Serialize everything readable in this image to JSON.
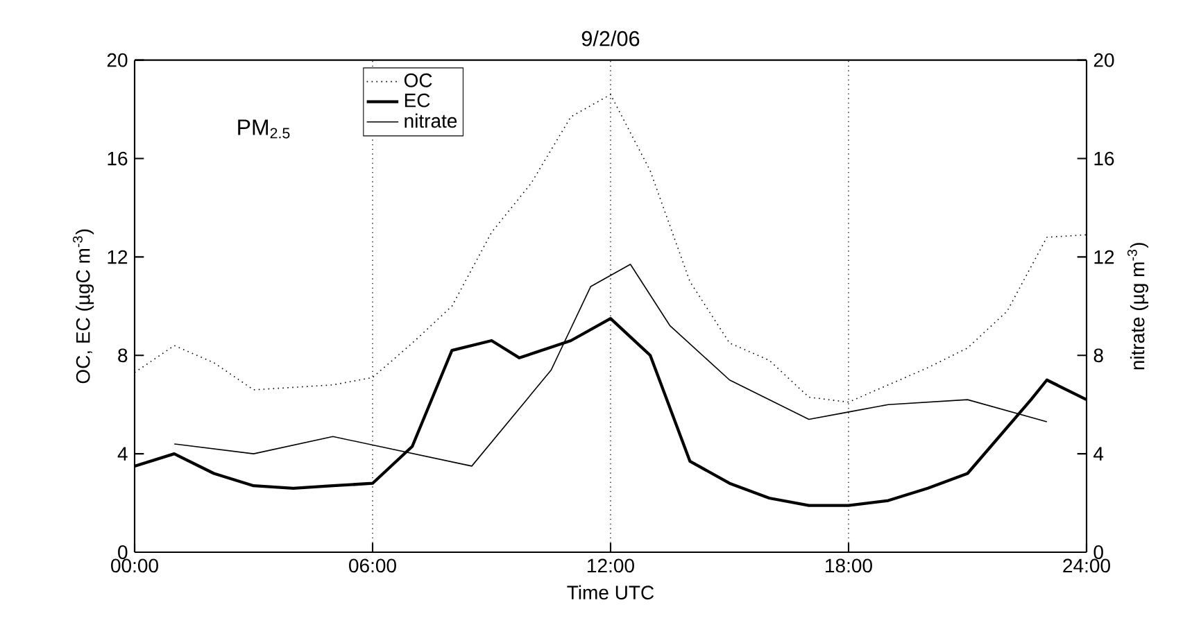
{
  "chart_data": {
    "type": "line",
    "title": "9/2/06",
    "xlabel": "Time UTC",
    "ylabel": "OC, EC (µgC m$^{-3}$)",
    "y2label": "nitrate (µg m$^{-3}$)",
    "annotations": [
      "PM$_{2.5}$"
    ],
    "xlim": [
      0,
      24
    ],
    "xticks": [
      {
        "value": 0,
        "label": "00:00"
      },
      {
        "value": 6,
        "label": "06:00"
      },
      {
        "value": 12,
        "label": "12:00"
      },
      {
        "value": 18,
        "label": "18:00"
      },
      {
        "value": 24,
        "label": "24:00"
      }
    ],
    "ylim": [
      0,
      20
    ],
    "yticks": [
      0,
      4,
      8,
      12,
      16,
      20
    ],
    "y2lim": [
      0,
      20
    ],
    "y2ticks": [
      0,
      4,
      8,
      12,
      16,
      20
    ],
    "grid": false,
    "legend": "top left",
    "marker": "none",
    "ref_lines": [
      {
        "axis": "x",
        "value": 6,
        "line_style": "dotted"
      },
      {
        "axis": "x",
        "value": 12,
        "line_style": "dotted"
      },
      {
        "axis": "x",
        "value": 18,
        "line_style": "dotted"
      }
    ],
    "series": [
      {
        "name": "OC",
        "color": "#000000",
        "line_style": "dotted",
        "x": [
          0,
          1,
          2,
          3,
          4,
          5,
          6,
          7,
          8,
          9,
          10,
          11,
          12,
          13,
          14,
          15,
          16,
          17,
          18,
          19,
          20,
          21,
          22,
          23,
          24
        ],
        "values": [
          7.3,
          8.4,
          7.7,
          6.6,
          6.7,
          6.8,
          7.1,
          8.5,
          10.0,
          13.0,
          15.0,
          17.7,
          18.6,
          15.5,
          11.0,
          8.5,
          7.8,
          6.3,
          6.1,
          6.8,
          7.5,
          8.3,
          9.8,
          12.8,
          12.9
        ]
      },
      {
        "name": "EC",
        "color": "#000000",
        "line_style": "solid",
        "x": [
          0,
          1,
          2,
          3,
          4,
          5,
          6,
          7,
          8,
          9,
          9.7,
          11,
          12,
          13,
          14,
          15,
          16,
          17,
          18,
          19,
          20,
          21,
          22.6,
          23,
          24
        ],
        "values": [
          3.5,
          4.0,
          3.2,
          2.7,
          2.6,
          2.7,
          2.8,
          4.3,
          8.2,
          8.6,
          7.9,
          8.6,
          9.5,
          8.0,
          3.7,
          2.8,
          2.2,
          1.9,
          1.9,
          2.1,
          2.6,
          3.2,
          6.2,
          7.0,
          6.2
        ]
      },
      {
        "name": "nitrate",
        "color": "#000000",
        "line_style": "solid",
        "axis": "y2",
        "x": [
          1,
          3,
          5,
          8.5,
          10.5,
          11.5,
          12.5,
          13.5,
          15,
          17,
          18,
          19,
          21,
          23
        ],
        "values": [
          4.4,
          4.0,
          4.7,
          3.5,
          7.4,
          10.8,
          11.7,
          9.2,
          7.0,
          5.4,
          5.7,
          6.0,
          6.2,
          5.3
        ]
      }
    ]
  }
}
